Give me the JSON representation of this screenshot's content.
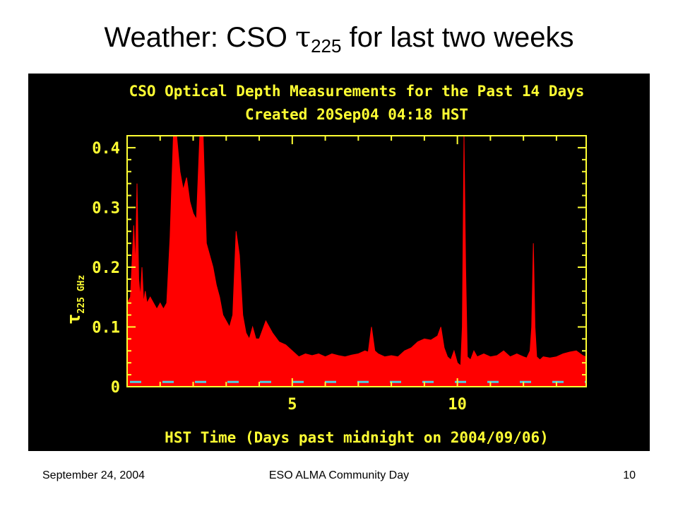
{
  "slide": {
    "title_prefix": "Weather: CSO ",
    "title_symbol": "τ",
    "title_subscript": "225",
    "title_suffix": " for last two weeks"
  },
  "footer": {
    "date": "September 24, 2004",
    "event": "ESO ALMA Community Day",
    "page": "10"
  },
  "chart_data": {
    "type": "area",
    "title": "CSO Optical Depth Measurements for the Past 14 Days",
    "subtitle": "Created 20Sep04 04:18 HST",
    "xlabel": "HST Time (Days past midnight on 2004/09/06)",
    "ylabel_symbol": "τ",
    "ylabel_subscript": "225 GHz",
    "xlim": [
      0,
      13.9
    ],
    "ylim": [
      0,
      0.42
    ],
    "x_ticks": [
      5,
      10
    ],
    "y_ticks": [
      0,
      0.1,
      0.2,
      0.3,
      0.4
    ],
    "y_tick_labels": [
      "0",
      "0.1",
      "0.2",
      "0.3",
      "0.4"
    ],
    "colors": {
      "background": "#000000",
      "area": "#ff0000",
      "axes": "#ffff33",
      "baseline": "#4fd0e0"
    },
    "baseline_y": 0.008,
    "series": [
      {
        "x": [
          0,
          0.1,
          0.2,
          0.25,
          0.3,
          0.35,
          0.4,
          0.45,
          0.5,
          0.55,
          0.6,
          0.7,
          0.8,
          0.9,
          1.0,
          1.1,
          1.2,
          1.3,
          1.4,
          1.5,
          1.6,
          1.7,
          1.8,
          1.9,
          2.0,
          2.1,
          2.2,
          2.3,
          2.4,
          2.5,
          2.6,
          2.7,
          2.8,
          2.9,
          3.0,
          3.1,
          3.2,
          3.3,
          3.4,
          3.5,
          3.6,
          3.7,
          3.8,
          3.9,
          4.0,
          4.2,
          4.4,
          4.6,
          4.8,
          5.0,
          5.2,
          5.4,
          5.6,
          5.8,
          6.0,
          6.2,
          6.4,
          6.6,
          6.8,
          7.0,
          7.2,
          7.3,
          7.4,
          7.5,
          7.6,
          7.8,
          8.0,
          8.2,
          8.4,
          8.6,
          8.8,
          9.0,
          9.2,
          9.4,
          9.5,
          9.6,
          9.7,
          9.8,
          9.9,
          10.0,
          10.1,
          10.15,
          10.2,
          10.25,
          10.3,
          10.4,
          10.5,
          10.6,
          10.8,
          11.0,
          11.2,
          11.4,
          11.6,
          11.8,
          12.0,
          12.1,
          12.2,
          12.25,
          12.3,
          12.35,
          12.4,
          12.5,
          12.6,
          12.8,
          13.0,
          13.2,
          13.4,
          13.6,
          13.8,
          13.9
        ],
        "y": [
          0.14,
          0.15,
          0.27,
          0.2,
          0.34,
          0.18,
          0.15,
          0.2,
          0.14,
          0.16,
          0.14,
          0.15,
          0.14,
          0.13,
          0.14,
          0.13,
          0.14,
          0.25,
          0.42,
          0.42,
          0.36,
          0.33,
          0.35,
          0.31,
          0.29,
          0.28,
          0.42,
          0.42,
          0.24,
          0.22,
          0.2,
          0.17,
          0.15,
          0.12,
          0.11,
          0.1,
          0.12,
          0.26,
          0.22,
          0.12,
          0.09,
          0.08,
          0.1,
          0.08,
          0.08,
          0.11,
          0.09,
          0.075,
          0.07,
          0.06,
          0.05,
          0.055,
          0.052,
          0.055,
          0.05,
          0.055,
          0.052,
          0.05,
          0.053,
          0.055,
          0.06,
          0.058,
          0.1,
          0.06,
          0.055,
          0.05,
          0.052,
          0.05,
          0.06,
          0.065,
          0.075,
          0.08,
          0.078,
          0.085,
          0.1,
          0.065,
          0.05,
          0.045,
          0.06,
          0.04,
          0.035,
          0.1,
          0.42,
          0.2,
          0.05,
          0.045,
          0.06,
          0.05,
          0.055,
          0.05,
          0.052,
          0.06,
          0.05,
          0.055,
          0.05,
          0.048,
          0.06,
          0.1,
          0.24,
          0.1,
          0.05,
          0.045,
          0.05,
          0.048,
          0.05,
          0.055,
          0.058,
          0.06,
          0.052,
          0.05
        ]
      }
    ]
  }
}
